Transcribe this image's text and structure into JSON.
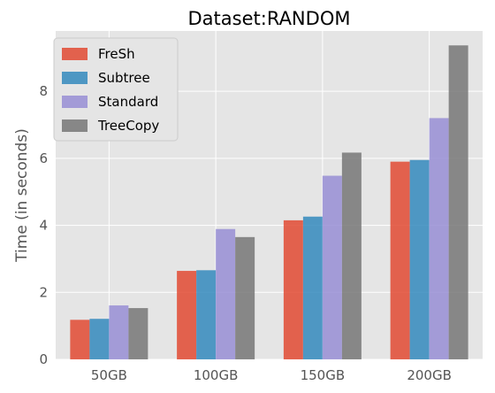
{
  "chart_data": {
    "type": "bar",
    "title": "Dataset:RANDOM",
    "xlabel": "",
    "ylabel": "Time (in seconds)",
    "categories": [
      "50GB",
      "100GB",
      "150GB",
      "200GB"
    ],
    "ylim": [
      0,
      9.8
    ],
    "yticks": [
      0,
      2,
      4,
      6,
      8
    ],
    "grid": true,
    "legend_position": "top-left",
    "series": [
      {
        "name": "FreSh",
        "color": "#E24A33",
        "values": [
          1.18,
          2.64,
          4.15,
          5.9
        ]
      },
      {
        "name": "Subtree",
        "color": "#348ABD",
        "values": [
          1.21,
          2.66,
          4.26,
          5.95
        ]
      },
      {
        "name": "Standard",
        "color": "#988ED5",
        "values": [
          1.61,
          3.89,
          5.48,
          7.2
        ]
      },
      {
        "name": "TreeCopy",
        "color": "#777777",
        "values": [
          1.53,
          3.65,
          6.17,
          9.37
        ]
      }
    ]
  }
}
